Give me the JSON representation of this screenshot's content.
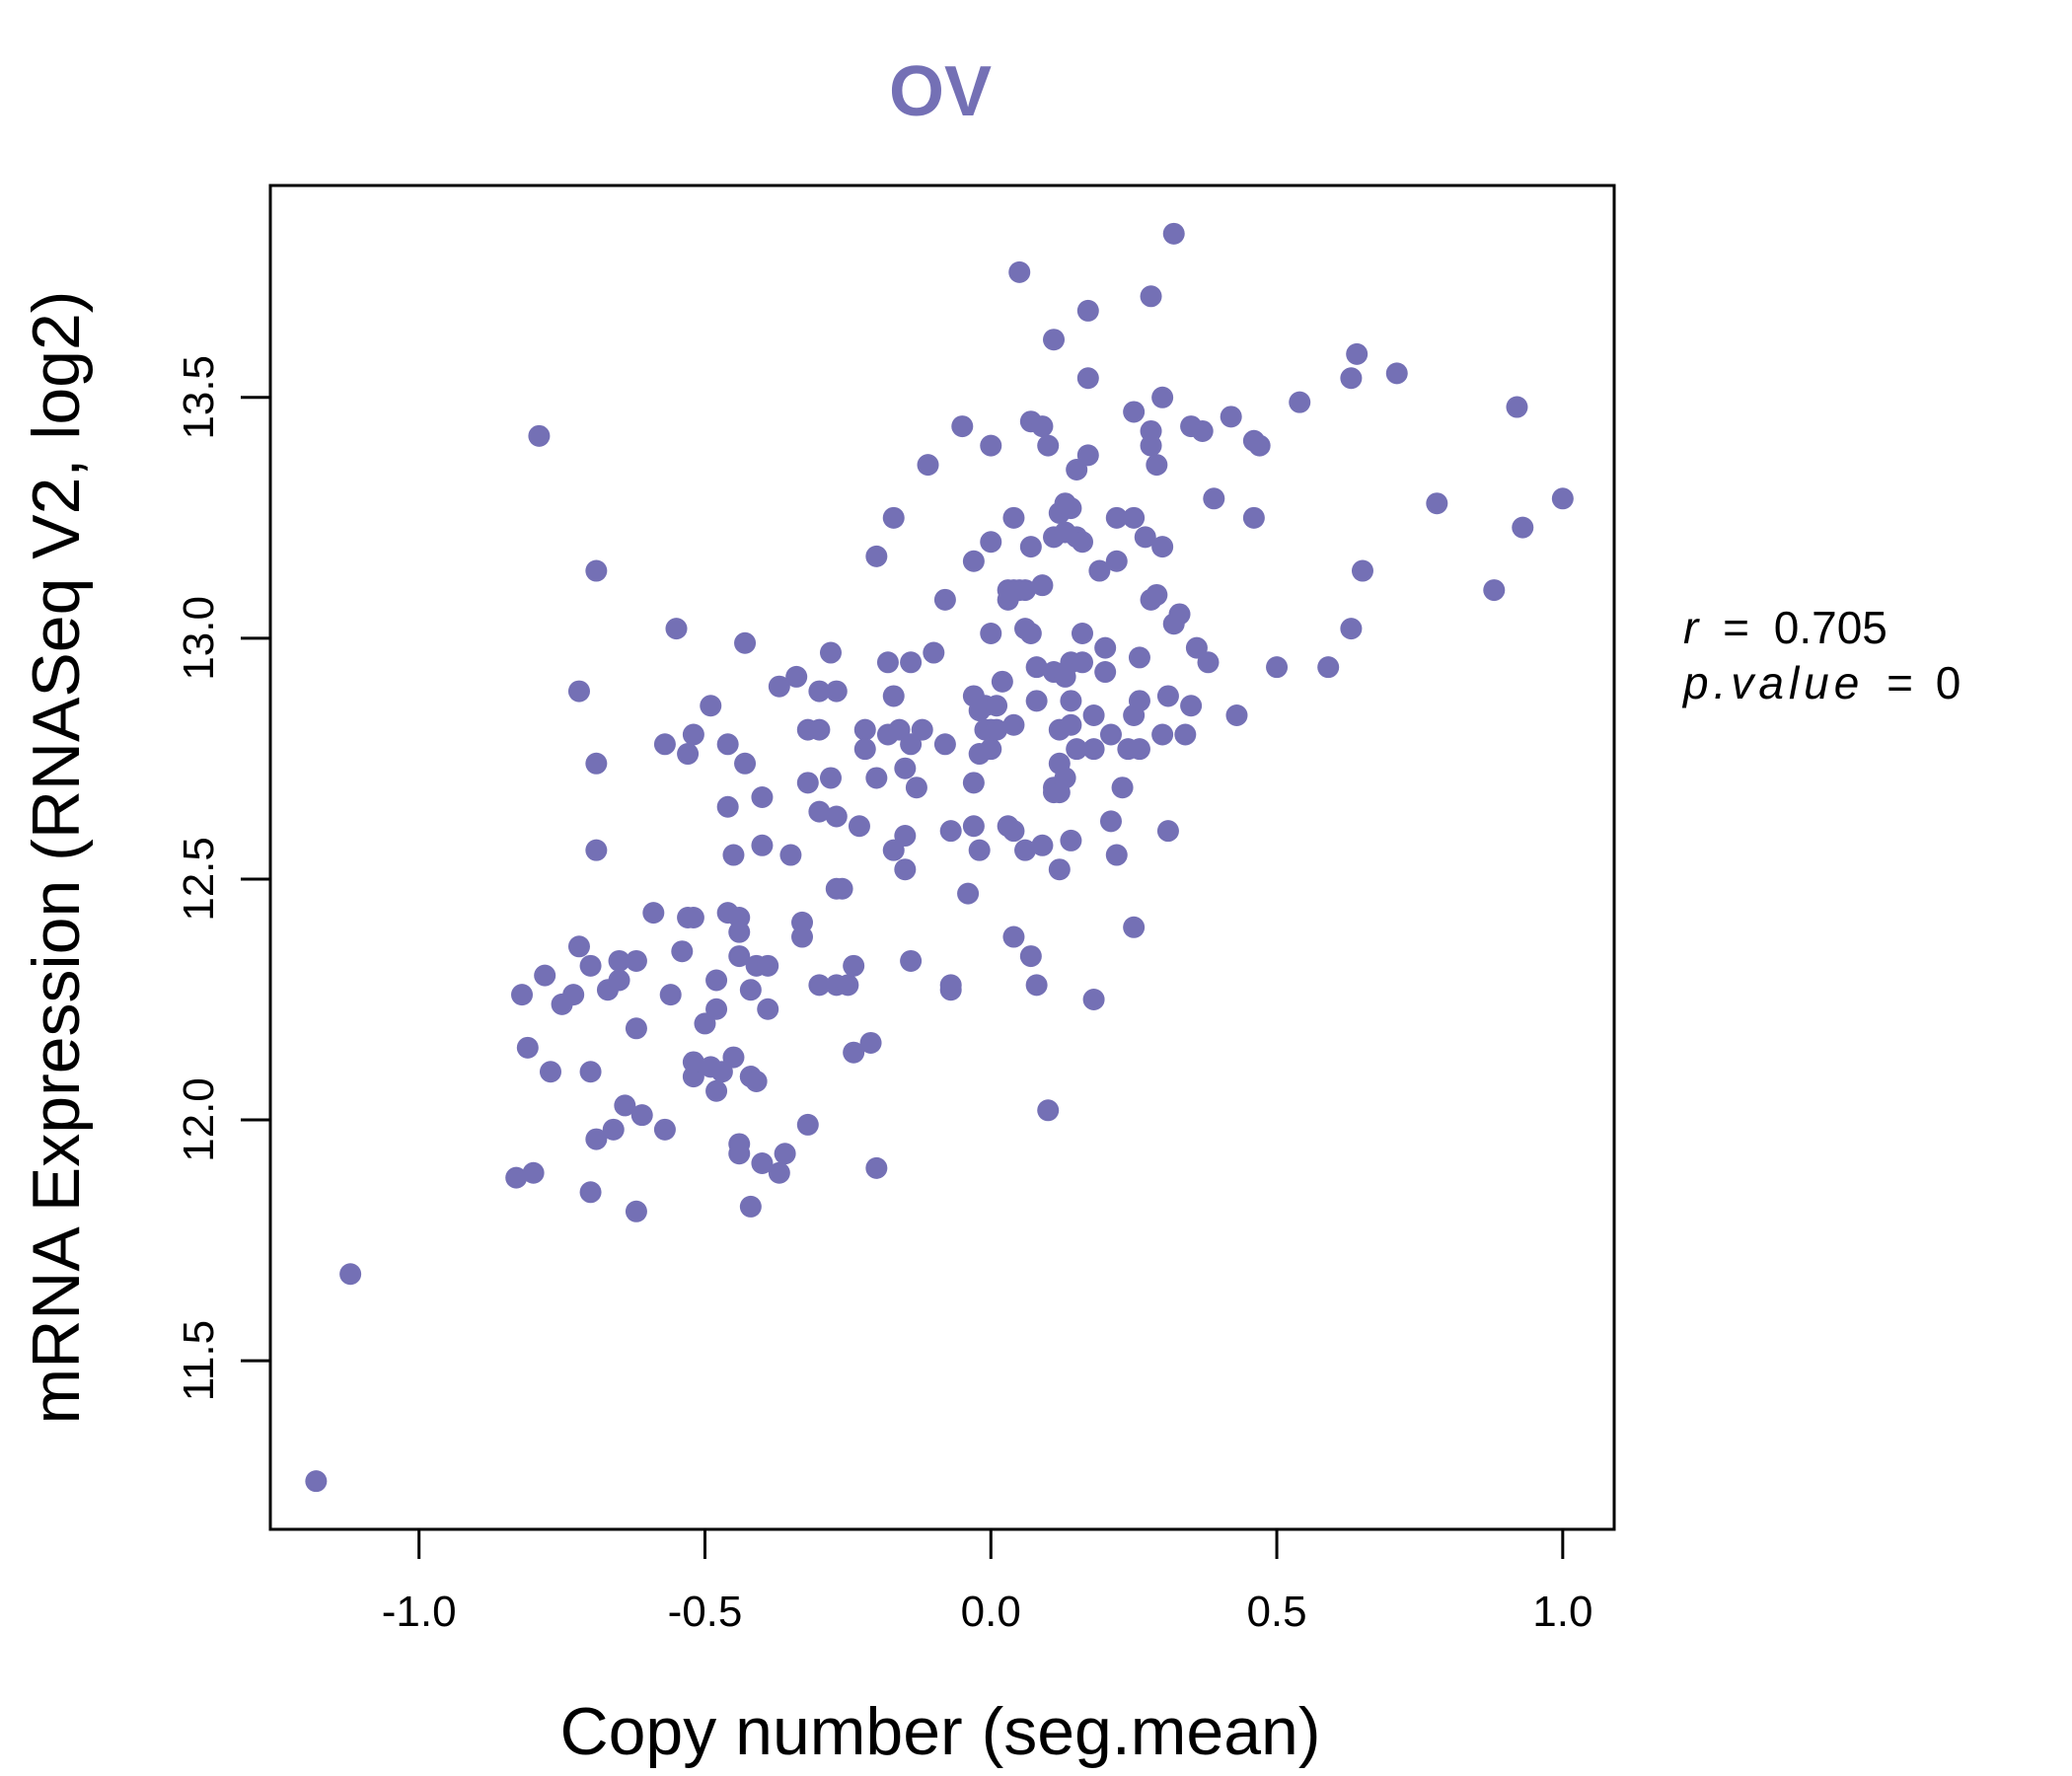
{
  "chart_data": {
    "type": "scatter",
    "title": "OV",
    "xlabel": "Copy number (seg.mean)",
    "ylabel": "mRNA Expression (RNASeq V2, log2)",
    "xlim": [
      -1.26,
      1.09
    ],
    "ylim": [
      11.15,
      13.94
    ],
    "xticks": [
      -1.0,
      -0.5,
      0.0,
      0.5,
      1.0
    ],
    "xtick_labels": [
      "-1.0",
      "-0.5",
      "0.0",
      "0.5",
      "1.0"
    ],
    "yticks": [
      11.5,
      12.0,
      12.5,
      13.0,
      13.5
    ],
    "ytick_labels": [
      "11.5",
      "12.0",
      "12.5",
      "13.0",
      "13.5"
    ],
    "color": "#7470B5",
    "stats": {
      "r_label": "r",
      "r_value": "0.705",
      "p_label": "p.value",
      "p_value": "0",
      "equals": "="
    },
    "points": [
      [
        -1.18,
        11.25
      ],
      [
        -1.12,
        11.68
      ],
      [
        -0.79,
        13.42
      ],
      [
        -0.69,
        13.14
      ],
      [
        -0.72,
        12.89
      ],
      [
        -0.69,
        12.74
      ],
      [
        -0.69,
        12.56
      ],
      [
        -0.83,
        11.88
      ],
      [
        -0.8,
        11.89
      ],
      [
        -0.7,
        11.85
      ],
      [
        -0.62,
        11.81
      ],
      [
        -0.82,
        12.26
      ],
      [
        -0.81,
        12.15
      ],
      [
        -0.77,
        12.1
      ],
      [
        -0.78,
        12.3
      ],
      [
        -0.75,
        12.24
      ],
      [
        -0.73,
        12.26
      ],
      [
        -0.72,
        12.36
      ],
      [
        -0.7,
        12.32
      ],
      [
        -0.7,
        12.1
      ],
      [
        -0.69,
        11.96
      ],
      [
        -0.66,
        11.98
      ],
      [
        -0.67,
        12.27
      ],
      [
        -0.65,
        12.29
      ],
      [
        -0.65,
        12.33
      ],
      [
        -0.62,
        12.33
      ],
      [
        -0.64,
        12.03
      ],
      [
        -0.61,
        12.01
      ],
      [
        -0.62,
        12.19
      ],
      [
        -0.59,
        12.43
      ],
      [
        -0.57,
        11.98
      ],
      [
        -0.56,
        12.26
      ],
      [
        -0.57,
        12.78
      ],
      [
        -0.55,
        13.02
      ],
      [
        -0.54,
        12.35
      ],
      [
        -0.53,
        12.42
      ],
      [
        -0.53,
        12.76
      ],
      [
        -0.52,
        12.8
      ],
      [
        -0.52,
        12.42
      ],
      [
        -0.52,
        12.09
      ],
      [
        -0.52,
        12.12
      ],
      [
        -0.5,
        12.2
      ],
      [
        -0.49,
        12.11
      ],
      [
        -0.49,
        12.86
      ],
      [
        -0.48,
        12.06
      ],
      [
        -0.48,
        12.23
      ],
      [
        -0.48,
        12.29
      ],
      [
        -0.47,
        12.1
      ],
      [
        -0.46,
        12.43
      ],
      [
        -0.46,
        12.78
      ],
      [
        -0.46,
        12.65
      ],
      [
        -0.45,
        12.55
      ],
      [
        -0.45,
        12.13
      ],
      [
        -0.44,
        11.95
      ],
      [
        -0.44,
        11.93
      ],
      [
        -0.44,
        12.42
      ],
      [
        -0.44,
        12.39
      ],
      [
        -0.44,
        12.34
      ],
      [
        -0.43,
        12.99
      ],
      [
        -0.43,
        12.74
      ],
      [
        -0.42,
        12.27
      ],
      [
        -0.42,
        12.09
      ],
      [
        -0.42,
        12.09
      ],
      [
        -0.42,
        11.82
      ],
      [
        -0.41,
        12.08
      ],
      [
        -0.41,
        12.32
      ],
      [
        -0.4,
        11.91
      ],
      [
        -0.4,
        12.67
      ],
      [
        -0.4,
        12.57
      ],
      [
        -0.39,
        12.32
      ],
      [
        -0.39,
        12.23
      ],
      [
        -0.37,
        11.89
      ],
      [
        -0.37,
        12.9
      ],
      [
        -0.36,
        11.93
      ],
      [
        -0.35,
        12.55
      ],
      [
        -0.34,
        12.92
      ],
      [
        -0.33,
        12.38
      ],
      [
        -0.33,
        12.41
      ],
      [
        -0.32,
        12.81
      ],
      [
        -0.32,
        12.7
      ],
      [
        -0.32,
        11.99
      ],
      [
        -0.3,
        12.28
      ],
      [
        -0.3,
        12.64
      ],
      [
        -0.3,
        12.81
      ],
      [
        -0.3,
        12.89
      ],
      [
        -0.28,
        12.71
      ],
      [
        -0.28,
        12.97
      ],
      [
        -0.27,
        12.89
      ],
      [
        -0.27,
        12.63
      ],
      [
        -0.27,
        12.28
      ],
      [
        -0.27,
        12.48
      ],
      [
        -0.26,
        12.48
      ],
      [
        -0.25,
        12.28
      ],
      [
        -0.24,
        12.32
      ],
      [
        -0.24,
        12.14
      ],
      [
        -0.23,
        12.61
      ],
      [
        -0.22,
        12.81
      ],
      [
        -0.22,
        12.77
      ],
      [
        -0.21,
        12.16
      ],
      [
        -0.2,
        11.9
      ],
      [
        -0.2,
        13.17
      ],
      [
        -0.2,
        12.71
      ],
      [
        -0.18,
        12.8
      ],
      [
        -0.18,
        12.95
      ],
      [
        -0.17,
        12.56
      ],
      [
        -0.17,
        12.88
      ],
      [
        -0.17,
        13.25
      ],
      [
        -0.16,
        12.81
      ],
      [
        -0.15,
        12.73
      ],
      [
        -0.15,
        12.52
      ],
      [
        -0.15,
        12.59
      ],
      [
        -0.14,
        12.33
      ],
      [
        -0.14,
        12.95
      ],
      [
        -0.14,
        12.78
      ],
      [
        -0.13,
        12.69
      ],
      [
        -0.12,
        12.81
      ],
      [
        -0.11,
        13.36
      ],
      [
        -0.1,
        12.97
      ],
      [
        -0.08,
        13.08
      ],
      [
        -0.08,
        12.78
      ],
      [
        -0.07,
        12.27
      ],
      [
        -0.07,
        12.28
      ],
      [
        -0.07,
        12.6
      ],
      [
        -0.05,
        13.44
      ],
      [
        -0.04,
        12.47
      ],
      [
        -0.03,
        13.16
      ],
      [
        -0.03,
        12.61
      ],
      [
        -0.03,
        12.7
      ],
      [
        -0.03,
        12.88
      ],
      [
        -0.02,
        12.56
      ],
      [
        -0.02,
        12.76
      ],
      [
        -0.02,
        12.85
      ],
      [
        -0.01,
        12.81
      ],
      [
        -0.01,
        12.86
      ],
      [
        0.0,
        12.77
      ],
      [
        0.0,
        12.81
      ],
      [
        0.0,
        13.01
      ],
      [
        0.0,
        13.2
      ],
      [
        0.0,
        13.4
      ],
      [
        0.01,
        12.86
      ],
      [
        0.01,
        12.81
      ],
      [
        0.02,
        12.91
      ],
      [
        0.03,
        12.61
      ],
      [
        0.03,
        13.08
      ],
      [
        0.03,
        13.1
      ],
      [
        0.04,
        12.82
      ],
      [
        0.04,
        12.6
      ],
      [
        0.04,
        13.25
      ],
      [
        0.04,
        13.1
      ],
      [
        0.04,
        12.38
      ],
      [
        0.05,
        13.1
      ],
      [
        0.05,
        13.76
      ],
      [
        0.06,
        12.56
      ],
      [
        0.06,
        13.02
      ],
      [
        0.06,
        13.1
      ],
      [
        0.07,
        13.19
      ],
      [
        0.07,
        13.01
      ],
      [
        0.07,
        12.34
      ],
      [
        0.07,
        13.45
      ],
      [
        0.08,
        12.28
      ],
      [
        0.08,
        12.94
      ],
      [
        0.08,
        12.87
      ],
      [
        0.09,
        13.44
      ],
      [
        0.09,
        13.11
      ],
      [
        0.09,
        12.57
      ],
      [
        0.1,
        12.02
      ],
      [
        0.1,
        13.4
      ],
      [
        0.11,
        12.68
      ],
      [
        0.11,
        13.62
      ],
      [
        0.11,
        12.69
      ],
      [
        0.11,
        13.21
      ],
      [
        0.11,
        12.93
      ],
      [
        0.12,
        12.68
      ],
      [
        0.12,
        12.74
      ],
      [
        0.12,
        12.52
      ],
      [
        0.12,
        12.81
      ],
      [
        0.12,
        13.26
      ],
      [
        0.13,
        12.71
      ],
      [
        0.13,
        12.92
      ],
      [
        0.13,
        13.22
      ],
      [
        0.13,
        13.28
      ],
      [
        0.14,
        12.58
      ],
      [
        0.14,
        12.87
      ],
      [
        0.14,
        12.95
      ],
      [
        0.14,
        13.27
      ],
      [
        0.14,
        12.82
      ],
      [
        0.15,
        12.77
      ],
      [
        0.15,
        13.21
      ],
      [
        0.15,
        13.35
      ],
      [
        0.16,
        12.95
      ],
      [
        0.16,
        13.01
      ],
      [
        0.16,
        13.2
      ],
      [
        0.17,
        13.68
      ],
      [
        0.17,
        13.54
      ],
      [
        0.17,
        13.38
      ],
      [
        0.18,
        12.77
      ],
      [
        0.18,
        12.84
      ],
      [
        0.18,
        12.25
      ],
      [
        0.19,
        13.14
      ],
      [
        0.2,
        12.98
      ],
      [
        0.2,
        12.93
      ],
      [
        0.21,
        12.62
      ],
      [
        0.21,
        12.8
      ],
      [
        0.22,
        12.55
      ],
      [
        0.22,
        13.16
      ],
      [
        0.22,
        13.25
      ],
      [
        0.23,
        12.69
      ],
      [
        0.24,
        12.77
      ],
      [
        0.25,
        13.25
      ],
      [
        0.25,
        13.47
      ],
      [
        0.25,
        12.84
      ],
      [
        0.25,
        12.4
      ],
      [
        0.26,
        12.96
      ],
      [
        0.26,
        12.87
      ],
      [
        0.26,
        12.77
      ],
      [
        0.27,
        13.21
      ],
      [
        0.28,
        13.4
      ],
      [
        0.28,
        13.71
      ],
      [
        0.28,
        13.43
      ],
      [
        0.28,
        13.08
      ],
      [
        0.29,
        13.36
      ],
      [
        0.29,
        13.09
      ],
      [
        0.3,
        13.5
      ],
      [
        0.3,
        13.19
      ],
      [
        0.3,
        12.8
      ],
      [
        0.31,
        12.88
      ],
      [
        0.31,
        12.6
      ],
      [
        0.32,
        13.84
      ],
      [
        0.32,
        13.03
      ],
      [
        0.33,
        13.05
      ],
      [
        0.34,
        12.8
      ],
      [
        0.35,
        13.44
      ],
      [
        0.35,
        12.86
      ],
      [
        0.36,
        12.98
      ],
      [
        0.37,
        13.43
      ],
      [
        0.38,
        12.95
      ],
      [
        0.39,
        13.29
      ],
      [
        0.42,
        13.46
      ],
      [
        0.43,
        12.84
      ],
      [
        0.46,
        13.25
      ],
      [
        0.46,
        13.41
      ],
      [
        0.47,
        13.4
      ],
      [
        0.5,
        12.94
      ],
      [
        0.54,
        13.49
      ],
      [
        0.59,
        12.94
      ],
      [
        0.63,
        13.54
      ],
      [
        0.63,
        13.02
      ],
      [
        0.64,
        13.59
      ],
      [
        0.65,
        13.14
      ],
      [
        0.71,
        13.55
      ],
      [
        0.78,
        13.28
      ],
      [
        0.88,
        13.1
      ],
      [
        0.92,
        13.48
      ],
      [
        0.93,
        13.23
      ],
      [
        1.0,
        13.29
      ]
    ]
  }
}
